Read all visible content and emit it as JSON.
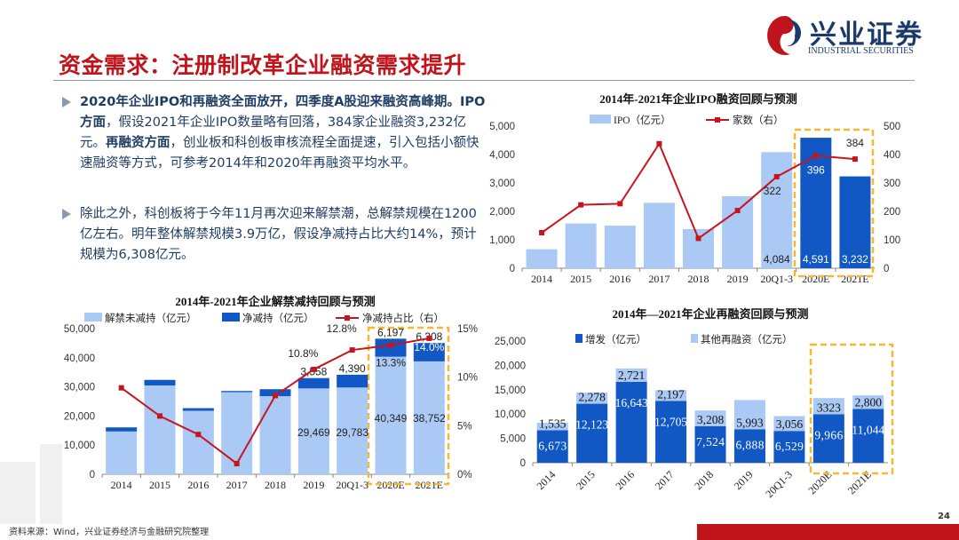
{
  "header": {
    "title": "资金需求：注册制改革企业融资需求提升",
    "logo_cn": "兴业证券",
    "logo_en": "INDUSTRIAL SECURITIES"
  },
  "text": {
    "p1": [
      {
        "t": "2020年企业IPO和再融资全面放开，四季度A股迎来融资高峰期。",
        "b": true
      },
      {
        "t": "IPO方面",
        "b": true
      },
      {
        "t": "，假设2021年企业IPO数量略有回落，384家企业融资3,232亿元。",
        "b": false
      },
      {
        "t": "再融资方面",
        "b": true
      },
      {
        "t": "，创业板和科创板审核流程全面提速，引入包括小额快速融资等方式，可参考2014年和2020年再融资平均水平。",
        "b": false
      }
    ],
    "p2": [
      {
        "t": "除此之外，科创板将于今年11月再次迎来解禁潮，总解禁规模在1200亿左右。明年整体解禁规模3.9万亿，假设净减持占比大约14%，预计规模为6,308亿元。",
        "b": false
      }
    ]
  },
  "footer": {
    "source": "资料来源：Wind，兴业证券经济与金融研究院整理",
    "page": "24"
  },
  "colors": {
    "light": "#aac9f4",
    "dark": "#1158c4",
    "line": "#c8151d",
    "highlight": "#f5b82e"
  },
  "chart_data": [
    {
      "type": "bar+line",
      "title": "2014年-2021年企业IPO融资回顾与预测",
      "categories": [
        "2014",
        "2015",
        "2016",
        "2017",
        "2018",
        "2019",
        "20Q1-3",
        "2020E",
        "2021E"
      ],
      "series": [
        {
          "name": "IPO（亿元）",
          "axis": "left",
          "values": [
            669,
            1576,
            1496,
            2301,
            1378,
            2532,
            4084,
            4591,
            3232
          ]
        },
        {
          "name": "家数（右）",
          "axis": "right",
          "values": [
            125,
            223,
            227,
            438,
            105,
            203,
            322,
            396,
            384
          ]
        }
      ],
      "ylim": [
        0,
        5000
      ],
      "yticks": [
        "0",
        "1,000",
        "2,000",
        "3,000",
        "4,000",
        "5,000"
      ],
      "y2lim": [
        0,
        500
      ],
      "y2ticks": [
        "0",
        "100",
        "200",
        "300",
        "400",
        "500"
      ],
      "bar_labels": [
        null,
        null,
        null,
        null,
        null,
        null,
        "4,084",
        "4,591",
        "3,232"
      ],
      "line_labels": [
        null,
        null,
        null,
        null,
        null,
        null,
        "322",
        "396",
        "384"
      ],
      "highlight": [
        "2020E",
        "2021E"
      ]
    },
    {
      "type": "stacked-bar+line",
      "title": "2014年-2021年企业解禁减持回顾与预测",
      "categories": [
        "2014",
        "2015",
        "2016",
        "2017",
        "2018",
        "2019",
        "20Q1-3",
        "2020E",
        "2021E"
      ],
      "series": [
        {
          "name": "解禁未减持（亿元）",
          "values": [
            14700,
            30500,
            21800,
            28200,
            26800,
            29469,
            29783,
            40349,
            38752
          ]
        },
        {
          "name": "净减持（亿元）",
          "values": [
            1400,
            1900,
            900,
            400,
            2400,
            3558,
            4390,
            6197,
            6308
          ]
        },
        {
          "name": "净减持占比（右）",
          "axis": "right",
          "values": [
            8.9,
            6.0,
            4.1,
            1.1,
            8.1,
            10.8,
            12.8,
            13.3,
            14.0
          ]
        }
      ],
      "ylim": [
        0,
        50000
      ],
      "yticks": [
        "0",
        "10,000",
        "20,000",
        "30,000",
        "40,000",
        "50,000"
      ],
      "y2lim": [
        0,
        15
      ],
      "y2ticks": [
        "0%",
        "5%",
        "10%",
        "15%"
      ],
      "base_labels": [
        null,
        null,
        null,
        null,
        null,
        "29,469",
        "29,783",
        "40,349",
        "38,752"
      ],
      "top_labels": [
        null,
        null,
        null,
        null,
        null,
        "3,558",
        "4,390",
        "6,197",
        "6,308"
      ],
      "line_labels": [
        null,
        null,
        null,
        null,
        null,
        "10.8%",
        "12.8%",
        "13.3%",
        "14.0%"
      ],
      "highlight": [
        "2020E",
        "2021E"
      ]
    },
    {
      "type": "stacked-bar",
      "title": "2014年—2021年企业再融资回顾与预测",
      "categories": [
        "2014",
        "2015",
        "2016",
        "2017",
        "2018",
        "2019",
        "20Q1-3",
        "2020E",
        "2021E"
      ],
      "series": [
        {
          "name": "增发（亿元）",
          "values": [
            6673,
            12123,
            16643,
            12705,
            7524,
            6888,
            6529,
            9966,
            11044
          ]
        },
        {
          "name": "其他再融资（亿元）",
          "values": [
            1535,
            2278,
            2721,
            2197,
            3208,
            5993,
            3056,
            3323,
            2800
          ]
        }
      ],
      "ylim": [
        0,
        25000
      ],
      "yticks": [
        "0",
        "5,000",
        "10,000",
        "15,000",
        "20,000",
        "25,000"
      ],
      "base_labels": [
        "6,673",
        "12,123",
        "16,643",
        "12,705",
        "7,524",
        "6,888",
        "6,529",
        "9,966",
        "11,044"
      ],
      "top_labels": [
        "1,535",
        "2,278",
        "2,721",
        "2,197",
        "3,208",
        "5,993",
        "3,056",
        "3323",
        "2,800"
      ],
      "highlight": [
        "2020E",
        "2021E"
      ]
    }
  ]
}
